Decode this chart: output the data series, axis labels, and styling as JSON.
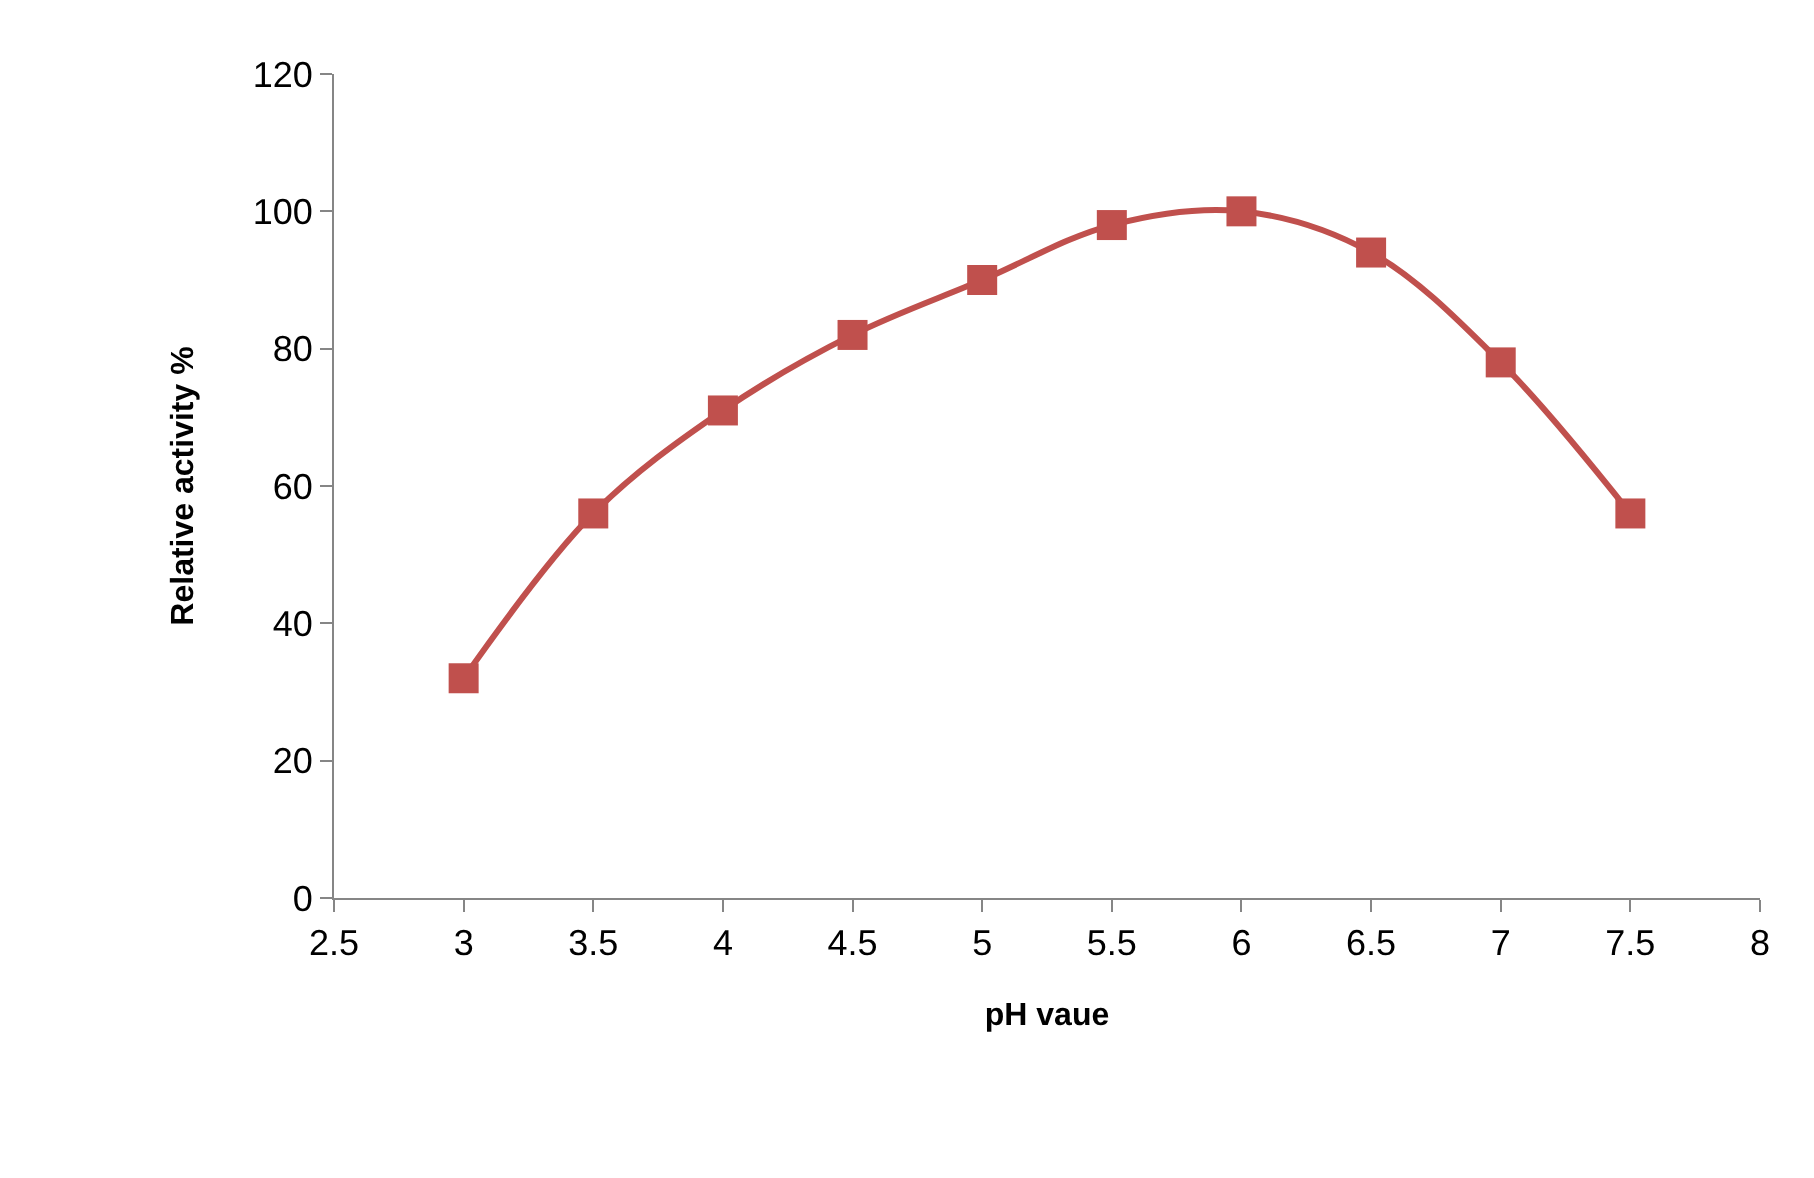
{
  "chart_data": {
    "type": "line",
    "xlabel": "pH vaue",
    "ylabel": "Relative activity %",
    "x": [
      3,
      3.5,
      4,
      4.5,
      5,
      5.5,
      6,
      6.5,
      7,
      7.5
    ],
    "series": [
      {
        "color": "#c0504d",
        "values": [
          32,
          56,
          71,
          82,
          90,
          98,
          100,
          94,
          78,
          56
        ]
      }
    ],
    "xlim": [
      2.5,
      8
    ],
    "xticks": [
      2.5,
      3,
      3.5,
      4,
      4.5,
      5,
      5.5,
      6,
      6.5,
      7,
      7.5,
      8
    ],
    "ylim": [
      0,
      120
    ],
    "yticks": [
      0,
      20,
      40,
      60,
      80,
      100,
      120
    ],
    "marker": "square",
    "line_style": "solid"
  }
}
